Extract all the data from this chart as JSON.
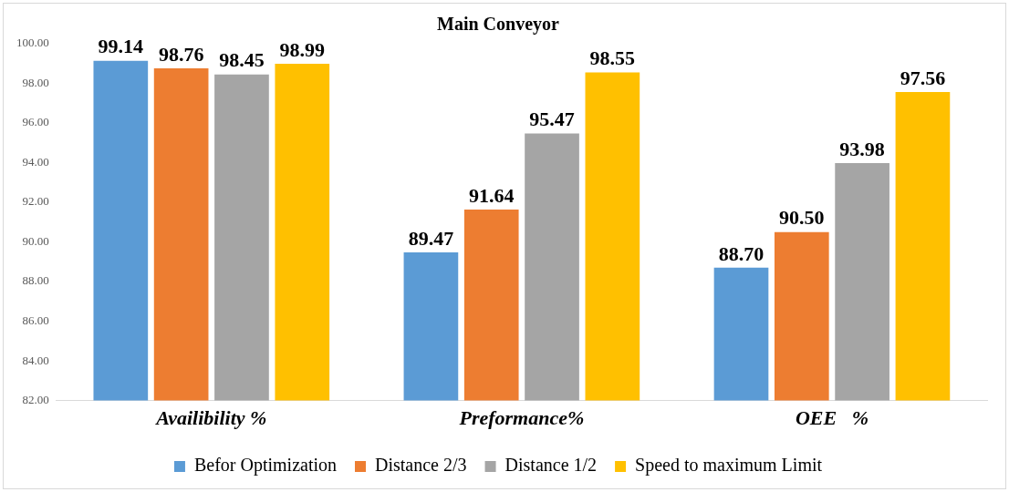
{
  "chart_data": {
    "type": "bar",
    "title": "Main Conveyor",
    "categories": [
      "Availibility %",
      "Preformance%",
      "OEE   %"
    ],
    "series": [
      {
        "name": "Befor Optimization",
        "color": "#5b9bd5",
        "values": [
          99.14,
          89.47,
          88.7
        ],
        "value_labels": [
          "99.14",
          "89.47",
          "88.70"
        ]
      },
      {
        "name": "Distance 2/3",
        "color": "#ed7d31",
        "values": [
          98.76,
          91.64,
          90.5
        ],
        "value_labels": [
          "98.76",
          "91.64",
          "90.50"
        ]
      },
      {
        "name": "Distance 1/2",
        "color": "#a5a5a5",
        "values": [
          98.45,
          95.47,
          93.98
        ],
        "value_labels": [
          "98.45",
          "95.47",
          "93.98"
        ]
      },
      {
        "name": "Speed to maximum Limit",
        "color": "#ffc000",
        "values": [
          98.99,
          98.55,
          97.56
        ],
        "value_labels": [
          "98.99",
          "98.55",
          "97.56"
        ]
      }
    ],
    "ylim": [
      82,
      100
    ],
    "yticks": [
      {
        "value": 82,
        "label": "82.00"
      },
      {
        "value": 84,
        "label": "84.00"
      },
      {
        "value": 86,
        "label": "86.00"
      },
      {
        "value": 88,
        "label": "88.00"
      },
      {
        "value": 90,
        "label": "90.00"
      },
      {
        "value": 92,
        "label": "92.00"
      },
      {
        "value": 94,
        "label": "94.00"
      },
      {
        "value": 96,
        "label": "96.00"
      },
      {
        "value": 98,
        "label": "98.00"
      },
      {
        "value": 100,
        "label": "100.00"
      }
    ],
    "grid": false,
    "legend": "bottom"
  }
}
